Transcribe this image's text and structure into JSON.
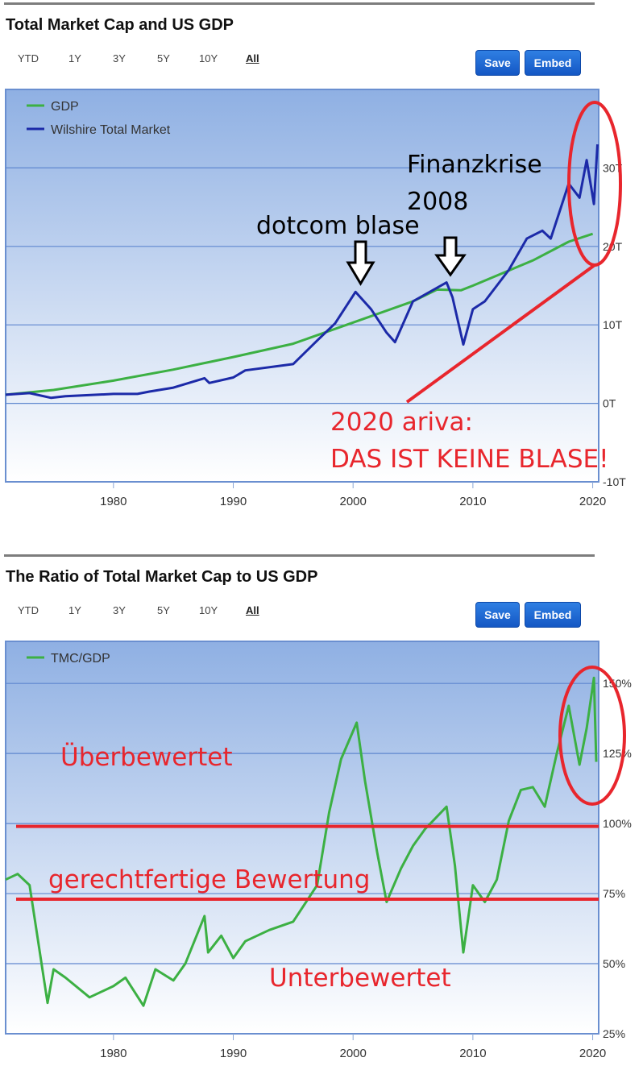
{
  "panels": [
    {
      "title": "Total Market Cap and US GDP",
      "ranges": [
        "YTD",
        "1Y",
        "3Y",
        "5Y",
        "10Y",
        "All"
      ],
      "active_range": "All",
      "buttons": {
        "save": "Save",
        "embed": "Embed"
      }
    },
    {
      "title": "The Ratio of Total Market Cap to US GDP",
      "ranges": [
        "YTD",
        "1Y",
        "3Y",
        "5Y",
        "10Y",
        "All"
      ],
      "active_range": "All",
      "buttons": {
        "save": "Save",
        "embed": "Embed"
      }
    }
  ],
  "chart_data": [
    {
      "type": "line",
      "title": "Total Market Cap and US GDP",
      "xlim": [
        1971,
        2020.5
      ],
      "ylim": [
        -10,
        40
      ],
      "x_ticks": [
        1980,
        1990,
        2000,
        2010,
        2020
      ],
      "y_ticks": [
        -10,
        0,
        10,
        20,
        30
      ],
      "y_tick_labels": [
        "-10T",
        "0T",
        "10T",
        "20T",
        "30T"
      ],
      "legend_position": "top-left",
      "series": [
        {
          "name": "GDP",
          "color": "#3cb043",
          "x": [
            1971,
            1975,
            1980,
            1985,
            1990,
            1995,
            2000,
            2005,
            2007,
            2009,
            2010,
            2015,
            2018,
            2020
          ],
          "y": [
            1.1,
            1.7,
            2.9,
            4.3,
            5.9,
            7.6,
            10.3,
            13.0,
            14.5,
            14.4,
            15.0,
            18.2,
            20.6,
            21.6
          ]
        },
        {
          "name": "Wilshire Total Market",
          "color": "#1c2aa8",
          "x": [
            1971,
            1973,
            1974.8,
            1976,
            1980,
            1982,
            1983,
            1985,
            1987.6,
            1988,
            1990,
            1991,
            1995,
            1997,
            1998.5,
            2000.2,
            2001.5,
            2002.8,
            2003.5,
            2005,
            2007.8,
            2008.3,
            2009.2,
            2010,
            2011,
            2013,
            2014.5,
            2015.8,
            2016.5,
            2018,
            2018.9,
            2019.5,
            2020.1,
            2020.4
          ],
          "y": [
            1.1,
            1.3,
            0.7,
            0.9,
            1.2,
            1.2,
            1.5,
            2.0,
            3.2,
            2.6,
            3.3,
            4.2,
            5.0,
            8.0,
            10.2,
            14.2,
            12.0,
            9.0,
            7.8,
            13.0,
            15.4,
            13.5,
            7.5,
            12.0,
            13.0,
            17.0,
            21.0,
            22.0,
            21.0,
            28.0,
            26.2,
            31.0,
            25.4,
            33.0
          ]
        }
      ],
      "annotations": [
        {
          "text": "Finanzkrise",
          "color": "#000000"
        },
        {
          "text": "2008",
          "color": "#000000"
        },
        {
          "text": "dotcom blase",
          "color": "#000000"
        },
        {
          "text": "2020 ariva:",
          "color": "#e8262d"
        },
        {
          "text": "DAS IST KEINE BLASE!",
          "color": "#e8262d"
        }
      ]
    },
    {
      "type": "line",
      "title": "The Ratio of Total Market Cap to US GDP",
      "xlim": [
        1971,
        2020.5
      ],
      "ylim": [
        25,
        165
      ],
      "x_ticks": [
        1980,
        1990,
        2000,
        2010,
        2020
      ],
      "y_ticks": [
        25,
        50,
        75,
        100,
        125,
        150
      ],
      "y_tick_labels": [
        "25%",
        "50%",
        "75%",
        "100%",
        "125%",
        "150%"
      ],
      "legend_position": "top-left",
      "series": [
        {
          "name": "TMC/GDP",
          "color": "#3cb043",
          "x": [
            1971,
            1972,
            1973,
            1974.5,
            1975,
            1976,
            1978,
            1980,
            1981,
            1982.5,
            1983.5,
            1985,
            1986,
            1987.6,
            1987.9,
            1989,
            1990,
            1991,
            1993,
            1995,
            1997,
            1998,
            1999,
            2000.3,
            2001,
            2002,
            2002.8,
            2004,
            2005,
            2006,
            2007.8,
            2008.5,
            2009.2,
            2010,
            2011,
            2012,
            2013,
            2014,
            2015,
            2016,
            2017,
            2018,
            2018.9,
            2019.5,
            2020.1,
            2020.3
          ],
          "y": [
            80,
            82,
            78,
            36,
            48,
            45,
            38,
            42,
            45,
            35,
            48,
            44,
            50,
            67,
            54,
            60,
            52,
            58,
            62,
            65,
            78,
            104,
            123,
            136,
            115,
            90,
            72,
            84,
            92,
            98,
            106,
            85,
            54,
            78,
            72,
            80,
            101,
            112,
            113,
            106,
            125,
            142,
            121,
            134,
            152,
            122
          ]
        }
      ],
      "annotations": [
        {
          "text": "Überbewertet",
          "color": "#e8262d"
        },
        {
          "text": "gerechtfertige Bewertung",
          "color": "#e8262d"
        },
        {
          "text": "Unterbewertet",
          "color": "#e8262d"
        }
      ],
      "reference_lines": [
        99,
        73
      ]
    }
  ]
}
